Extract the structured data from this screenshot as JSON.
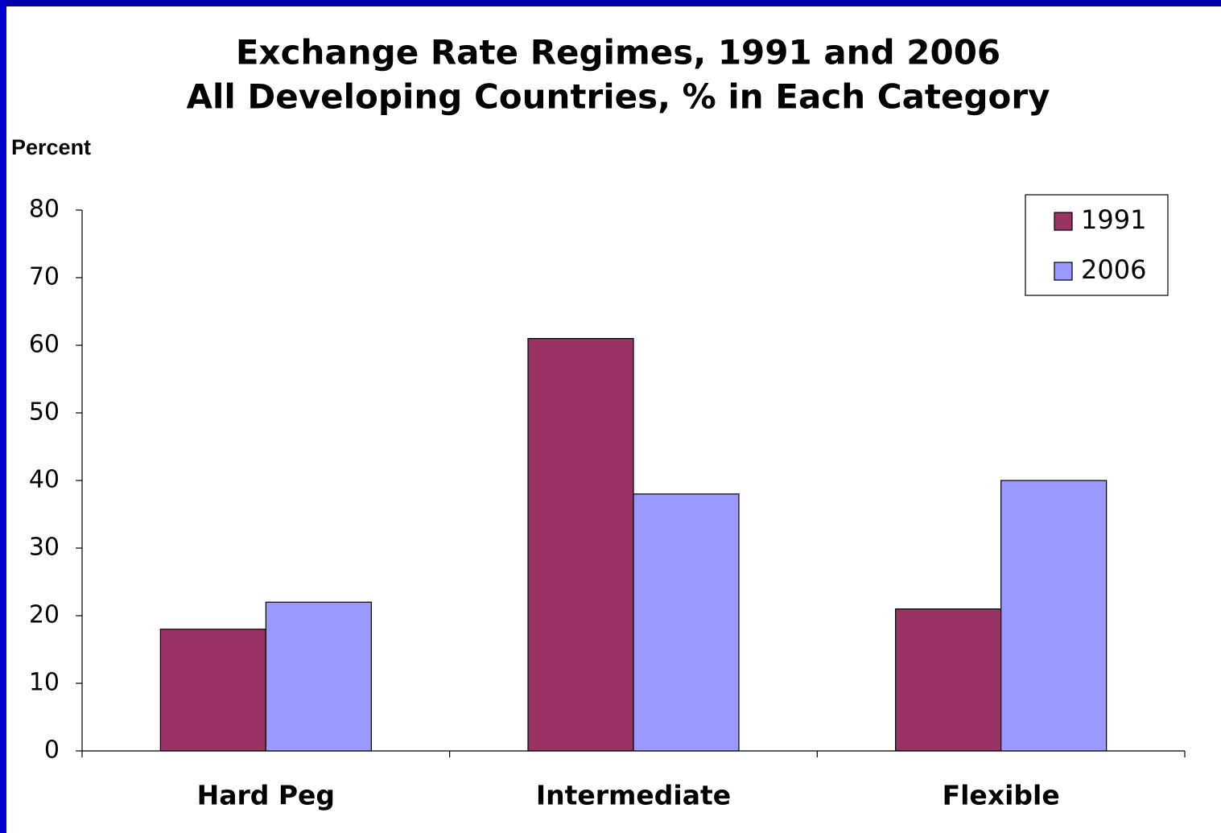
{
  "chart_data": {
    "type": "bar",
    "title": "Exchange Rate Regimes, 1991 and 2006",
    "subtitle": "All Developing Countries, % in Each Category",
    "y_label": "Percent",
    "categories": [
      "Hard Peg",
      "Intermediate",
      "Flexible"
    ],
    "series": [
      {
        "name": "1991",
        "color": "#993366",
        "values": [
          18,
          61,
          21
        ]
      },
      {
        "name": "2006",
        "color": "#9999ff",
        "values": [
          22,
          38,
          40
        ]
      }
    ],
    "ylim": [
      0,
      80
    ],
    "yticks": [
      0,
      10,
      20,
      30,
      40,
      50,
      60,
      70,
      80
    ],
    "grid": false,
    "legend": "top-right"
  }
}
